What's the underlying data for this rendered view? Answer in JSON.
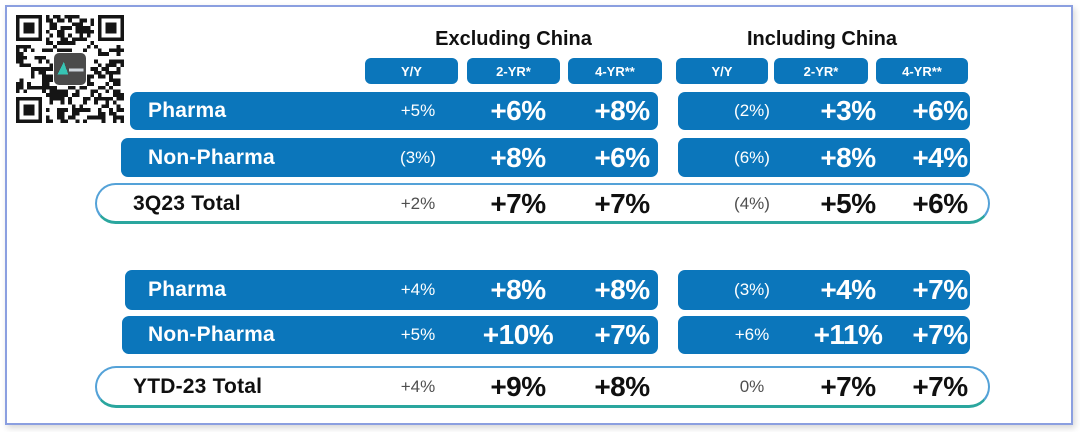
{
  "colors": {
    "bar_blue": "#0b76bb",
    "frame_border": "#8b9fe0",
    "pill_border": "#54a2d8",
    "teal_accent": "#2aa69e",
    "text_dark": "#101010",
    "text_muted": "#4f4f4f"
  },
  "qr": {
    "name": "qr-code"
  },
  "chart_data": {
    "type": "table",
    "column_groups": [
      "Excluding China",
      "Including China"
    ],
    "columns": [
      "Y/Y",
      "2-YR*",
      "4-YR**",
      "Y/Y",
      "2-YR*",
      "4-YR**"
    ],
    "sections": [
      {
        "rows": [
          {
            "label": "Pharma",
            "values": [
              "+5%",
              "+6%",
              "+8%",
              "(2%)",
              "+3%",
              "+6%"
            ]
          },
          {
            "label": "Non-Pharma",
            "values": [
              "(3%)",
              "+8%",
              "+6%",
              "(6%)",
              "+8%",
              "+4%"
            ]
          }
        ],
        "total": {
          "label": "3Q23 Total",
          "values": [
            "+2%",
            "+7%",
            "+7%",
            "(4%)",
            "+5%",
            "+6%"
          ]
        }
      },
      {
        "rows": [
          {
            "label": "Pharma",
            "values": [
              "+4%",
              "+8%",
              "+8%",
              "(3%)",
              "+4%",
              "+7%"
            ]
          },
          {
            "label": "Non-Pharma",
            "values": [
              "+5%",
              "+10%",
              "+7%",
              "+6%",
              "+11%",
              "+7%"
            ]
          }
        ],
        "total": {
          "label": "YTD-23 Total",
          "values": [
            "+4%",
            "+9%",
            "+8%",
            "0%",
            "+7%",
            "+7%"
          ]
        }
      }
    ]
  }
}
